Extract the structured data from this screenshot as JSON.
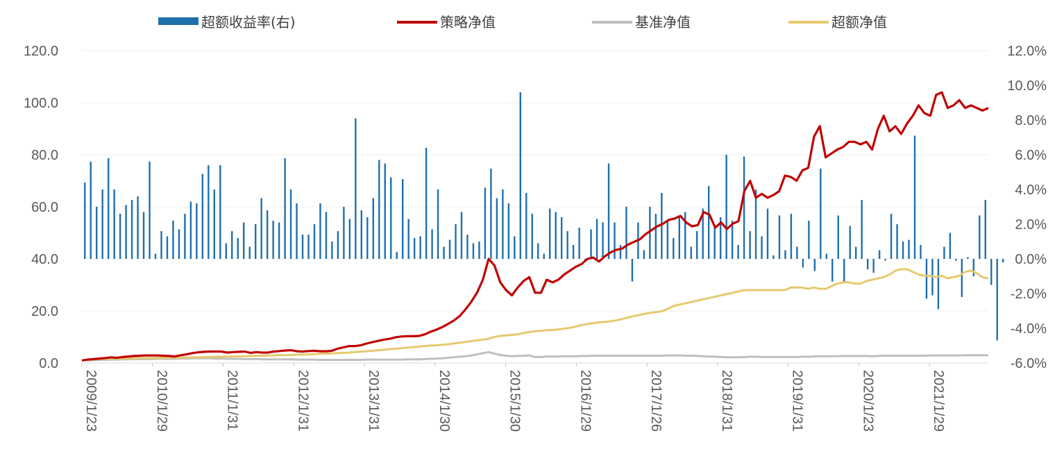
{
  "colors": {
    "bar": "#1f6fad",
    "strategy": "#c00000",
    "benchmark": "#bfbfbf",
    "excess_nav": "#e6c96e",
    "axis_text": "#595959",
    "grid": "#eeeeee"
  },
  "legend": [
    {
      "key": "excess_return",
      "label": "超额收益率(右)",
      "shape": "bar"
    },
    {
      "key": "strategy_nav",
      "label": "策略净值",
      "shape": "line"
    },
    {
      "key": "benchmark_nav",
      "label": "基准净值",
      "shape": "line"
    },
    {
      "key": "excess_nav",
      "label": "超额净值",
      "shape": "line"
    }
  ],
  "chart_data": {
    "type": "bar+line",
    "title": "",
    "legend_position": "top",
    "grid": true,
    "x_tick_labels": [
      "2009/1/23",
      "2010/1/29",
      "2011/1/31",
      "2012/1/31",
      "2013/1/31",
      "2014/1/30",
      "2015/1/30",
      "2016/1/29",
      "2017/1/26",
      "2018/1/31",
      "2019/1/31",
      "2020/1/23",
      "2021/1/29"
    ],
    "y_left": {
      "range": [
        0,
        120
      ],
      "ticks": [
        "0.0",
        "20.0",
        "40.0",
        "60.0",
        "80.0",
        "100.0",
        "120.0"
      ]
    },
    "y_right": {
      "range": [
        -6,
        12
      ],
      "ticks": [
        "-6.0%",
        "-4.0%",
        "-2.0%",
        "0.0%",
        "2.0%",
        "4.0%",
        "6.0%",
        "8.0%",
        "10.0%",
        "12.0%"
      ]
    },
    "period_index_range": [
      0,
      154
    ],
    "x_tick_period_index": [
      0,
      12,
      24,
      36,
      48,
      60,
      72,
      84,
      96,
      108,
      120,
      132,
      144
    ],
    "series": [
      {
        "name": "超额收益率(右)",
        "type": "bar",
        "axis": "right",
        "unit": "%",
        "values": [
          4.4,
          5.6,
          3.0,
          4.0,
          5.8,
          4.0,
          2.6,
          3.1,
          3.4,
          3.6,
          2.7,
          5.6,
          0.3,
          1.6,
          1.3,
          2.2,
          1.7,
          2.6,
          3.3,
          3.2,
          4.9,
          5.4,
          4.0,
          5.4,
          0.9,
          1.6,
          1.2,
          2.1,
          0.7,
          2.0,
          3.5,
          2.8,
          2.2,
          2.1,
          5.8,
          4.0,
          3.2,
          1.4,
          1.4,
          2.0,
          3.2,
          2.7,
          1.0,
          1.6,
          3.0,
          2.3,
          8.1,
          2.8,
          2.4,
          3.5,
          5.7,
          5.5,
          4.7,
          0.4,
          4.6,
          2.3,
          1.2,
          1.3,
          6.4,
          1.7,
          4.0,
          0.7,
          1.1,
          2.0,
          2.7,
          1.4,
          0.9,
          1.0,
          4.1,
          5.2,
          3.5,
          4.0,
          3.2,
          1.3,
          9.6,
          3.8,
          2.6,
          0.9,
          0.3,
          2.9,
          2.7,
          2.4,
          1.6,
          0.8,
          1.8,
          -0.1,
          1.7,
          2.3,
          2.1,
          5.5,
          2.1,
          0.8,
          3.0,
          -1.3,
          2.1,
          0.5,
          3.0,
          2.6,
          3.8,
          2.2,
          1.2,
          2.5,
          2.7,
          0.7,
          1.6,
          2.9,
          4.2,
          1.8,
          2.4,
          6.0,
          2.2,
          0.8,
          5.9,
          1.6,
          4.0,
          1.3,
          2.9,
          0.2,
          2.5,
          0.5,
          2.6,
          0.7,
          -0.5,
          2.2,
          -0.7,
          5.2,
          0.3,
          -1.3,
          2.5,
          -1.4,
          1.9,
          0.7,
          3.4,
          -0.6,
          -0.8,
          0.5,
          -0.1,
          2.6,
          2.0,
          1.0,
          1.1,
          7.1,
          0.8,
          -2.3,
          -2.1,
          -2.9,
          0.7,
          1.5,
          -0.1,
          -2.2,
          0.1,
          -1.0,
          2.5,
          3.4,
          -1.5,
          -4.7,
          -0.2
        ]
      },
      {
        "name": "策略净值",
        "type": "line",
        "axis": "left",
        "values": [
          1.0,
          1.3,
          1.5,
          1.7,
          1.9,
          2.2,
          2.0,
          2.3,
          2.5,
          2.7,
          2.8,
          2.9,
          2.9,
          2.9,
          2.8,
          2.7,
          2.5,
          3.0,
          3.3,
          3.8,
          4.1,
          4.3,
          4.4,
          4.4,
          4.4,
          4.0,
          4.2,
          4.3,
          4.4,
          3.9,
          4.2,
          4.0,
          4.0,
          4.4,
          4.6,
          4.8,
          4.9,
          4.5,
          4.4,
          4.6,
          4.7,
          4.5,
          4.5,
          4.7,
          5.5,
          6.0,
          6.5,
          6.5,
          6.8,
          7.5,
          8.0,
          8.5,
          9.0,
          9.3,
          9.9,
          10.2,
          10.3,
          10.3,
          10.4,
          11.0,
          12.0,
          12.8,
          13.8,
          15.0,
          16.3,
          18.0,
          20.5,
          23.5,
          27.0,
          32.0,
          40.0,
          37.5,
          31.0,
          28.0,
          26.0,
          29.0,
          31.5,
          33.0,
          27.0,
          27.0,
          32.0,
          31.0,
          32.0,
          34.0,
          35.5,
          37.0,
          38.0,
          40.0,
          40.5,
          39.0,
          41.0,
          42.5,
          43.5,
          44.0,
          45.5,
          46.5,
          47.5,
          49.5,
          51.0,
          52.5,
          53.5,
          55.0,
          55.5,
          56.5,
          54.0,
          52.5,
          53.0,
          58.0,
          57.0,
          52.0,
          54.0,
          51.5,
          53.5,
          54.5,
          66.0,
          70.0,
          63.5,
          65.0,
          63.5,
          64.5,
          66.0,
          72.0,
          71.5,
          70.0,
          74.0,
          75.0,
          87.0,
          91.0,
          79.0,
          80.5,
          82.0,
          83.0,
          85.0,
          85.0,
          84.0,
          85.0,
          82.0,
          90.0,
          95.0,
          89.0,
          91.0,
          88.0,
          92.0,
          95.0,
          99.0,
          96.0,
          95.0,
          103.0,
          104.0,
          98.0,
          99.0,
          101.0,
          98.0,
          99.0,
          98.0,
          97.0,
          98.0
        ]
      },
      {
        "name": "基准净值",
        "type": "line",
        "axis": "left",
        "values": [
          1.0,
          1.1,
          1.1,
          1.2,
          1.2,
          1.3,
          1.3,
          1.4,
          1.4,
          1.5,
          1.5,
          1.5,
          1.5,
          1.6,
          1.6,
          1.6,
          1.6,
          1.7,
          1.7,
          1.8,
          1.8,
          1.8,
          1.8,
          1.7,
          1.7,
          1.6,
          1.6,
          1.6,
          1.5,
          1.5,
          1.5,
          1.4,
          1.4,
          1.4,
          1.4,
          1.4,
          1.4,
          1.3,
          1.3,
          1.3,
          1.3,
          1.2,
          1.2,
          1.2,
          1.2,
          1.2,
          1.2,
          1.2,
          1.2,
          1.3,
          1.3,
          1.3,
          1.3,
          1.3,
          1.3,
          1.3,
          1.4,
          1.4,
          1.4,
          1.5,
          1.6,
          1.7,
          1.8,
          2.0,
          2.2,
          2.4,
          2.6,
          2.9,
          3.3,
          3.8,
          4.2,
          3.6,
          3.1,
          2.8,
          2.6,
          2.7,
          2.8,
          2.9,
          2.3,
          2.3,
          2.5,
          2.5,
          2.5,
          2.6,
          2.6,
          2.6,
          2.7,
          2.7,
          2.8,
          2.8,
          2.8,
          2.8,
          2.8,
          2.8,
          2.8,
          2.8,
          2.8,
          2.8,
          2.8,
          2.8,
          2.8,
          2.9,
          2.9,
          2.9,
          2.8,
          2.8,
          2.7,
          2.6,
          2.5,
          2.4,
          2.3,
          2.2,
          2.2,
          2.2,
          2.3,
          2.4,
          2.4,
          2.3,
          2.3,
          2.3,
          2.3,
          2.3,
          2.3,
          2.3,
          2.4,
          2.4,
          2.5,
          2.6,
          2.6,
          2.6,
          2.6,
          2.7,
          2.7,
          2.7,
          2.7,
          2.7,
          2.6,
          2.7,
          2.8,
          2.8,
          2.8,
          2.8,
          2.8,
          2.8,
          2.8,
          2.8,
          2.9,
          2.9,
          2.9,
          2.9,
          2.9,
          2.9,
          3.0,
          3.0,
          3.0,
          3.0,
          3.0
        ]
      },
      {
        "name": "超额净值",
        "type": "line",
        "axis": "left",
        "values": [
          1.0,
          1.2,
          1.4,
          1.5,
          1.6,
          1.7,
          1.7,
          1.7,
          1.8,
          1.8,
          1.9,
          1.9,
          1.9,
          2.0,
          2.0,
          2.0,
          2.0,
          2.1,
          2.1,
          2.2,
          2.2,
          2.3,
          2.3,
          2.4,
          2.4,
          2.5,
          2.5,
          2.6,
          2.6,
          2.7,
          2.8,
          2.8,
          2.9,
          2.9,
          3.0,
          3.0,
          3.1,
          3.2,
          3.2,
          3.3,
          3.4,
          3.5,
          3.6,
          3.7,
          3.8,
          3.9,
          4.0,
          4.2,
          4.4,
          4.5,
          4.7,
          4.9,
          5.1,
          5.3,
          5.5,
          5.7,
          5.9,
          6.1,
          6.3,
          6.5,
          6.7,
          6.8,
          7.0,
          7.2,
          7.5,
          7.8,
          8.1,
          8.4,
          8.7,
          9.0,
          9.3,
          10.0,
          10.4,
          10.6,
          10.8,
          11.0,
          11.5,
          11.9,
          12.2,
          12.4,
          12.6,
          12.7,
          12.9,
          13.2,
          13.5,
          14.0,
          14.6,
          15.0,
          15.3,
          15.6,
          15.8,
          16.0,
          16.4,
          16.9,
          17.5,
          18.0,
          18.5,
          19.0,
          19.3,
          19.6,
          20.0,
          21.0,
          22.0,
          22.5,
          23.0,
          23.5,
          24.0,
          24.5,
          25.0,
          25.5,
          26.0,
          26.5,
          27.0,
          27.5,
          28.0,
          28.0,
          28.0,
          28.0,
          28.0,
          28.0,
          28.0,
          28.0,
          29.0,
          29.0,
          29.0,
          28.5,
          29.0,
          28.5,
          28.5,
          29.5,
          30.5,
          31.0,
          31.0,
          30.5,
          30.5,
          31.5,
          32.0,
          32.5,
          33.0,
          34.0,
          35.5,
          36.0,
          36.0,
          35.0,
          34.0,
          33.5,
          33.5,
          33.0,
          33.5,
          32.5,
          33.0,
          33.5,
          35.0,
          35.5,
          34.5,
          33.0,
          32.5
        ]
      }
    ]
  }
}
